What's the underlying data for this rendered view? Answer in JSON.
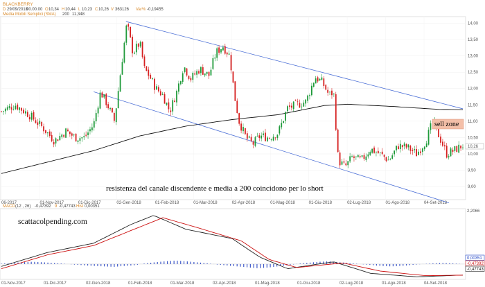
{
  "header": {
    "title": "BLACKBERRY",
    "date_label": "D",
    "date": "29/09/2018",
    "time": "00.00.00",
    "open_label": "O",
    "open": "10,34",
    "high_label": "H",
    "high": "10,44",
    "low_label": "L",
    "low": "10,23",
    "close_label": "C",
    "close": "10,26",
    "volume_label": "V",
    "volume": "363126",
    "var_label": "Var%",
    "var": "-0,19455",
    "ma_label": "Media Mobili Semplici (SMA)",
    "ma_period": "200",
    "ma_value": "11,348"
  },
  "annotations": {
    "channel_text": "resistenza del canale discendente e media a 200 coincidono per lo short",
    "sell_zone": "sell zone",
    "watermark": "scattacolpending.com"
  },
  "macd_header": {
    "label": "MACD",
    "params": "(12 , 26)",
    "macd_value": "-0,47392",
    "signal_label": "9",
    "signal_value": "-0,47743",
    "hist_label": "Hist",
    "hist_value": "0,00351"
  },
  "chart_data": [
    {
      "type": "candlestick",
      "title": "BLACKBERRY",
      "x_tick_labels": [
        "06-2017",
        "01-Nov-2017",
        "01-Dic-2017",
        "02-Gen-2018",
        "01-Feb-2018",
        "01-Mar-2018",
        "02-Apr-2018",
        "01-Mag-2018",
        "01-Giu-2018",
        "02-Lug-2018",
        "01-Ago-2018",
        "04-Set-2018"
      ],
      "y_tick_labels": [
        "14,00",
        "13,50",
        "13,00",
        "12,50",
        "12,00",
        "11,50",
        "11,00",
        "10,50",
        "10,00",
        "9,50",
        "9,00"
      ],
      "y_ticks": [
        14.0,
        13.5,
        13.0,
        12.5,
        12.0,
        11.5,
        11.0,
        10.5,
        10.0,
        9.5,
        9.0
      ],
      "ylim": [
        8.6,
        14.2
      ],
      "last_price": 10.26,
      "last_price_label": "10,26",
      "price_path": [
        [
          0,
          11.3
        ],
        [
          0.03,
          11.5
        ],
        [
          0.06,
          11.2
        ],
        [
          0.09,
          10.8
        ],
        [
          0.115,
          10.4
        ],
        [
          0.14,
          10.7
        ],
        [
          0.16,
          10.5
        ],
        [
          0.18,
          10.5
        ],
        [
          0.2,
          10.9
        ],
        [
          0.215,
          11.9
        ],
        [
          0.23,
          11.5
        ],
        [
          0.245,
          11.0
        ],
        [
          0.26,
          12.7
        ],
        [
          0.272,
          14.0
        ],
        [
          0.285,
          13.1
        ],
        [
          0.3,
          13.4
        ],
        [
          0.31,
          12.6
        ],
        [
          0.32,
          12.4
        ],
        [
          0.335,
          12.0
        ],
        [
          0.35,
          11.8
        ],
        [
          0.365,
          11.3
        ],
        [
          0.38,
          11.9
        ],
        [
          0.395,
          12.7
        ],
        [
          0.41,
          12.3
        ],
        [
          0.43,
          12.6
        ],
        [
          0.45,
          12.4
        ],
        [
          0.465,
          13.1
        ],
        [
          0.48,
          13.3
        ],
        [
          0.495,
          13.0
        ],
        [
          0.505,
          11.8
        ],
        [
          0.515,
          11.0
        ],
        [
          0.53,
          10.5
        ],
        [
          0.545,
          10.3
        ],
        [
          0.56,
          10.55
        ],
        [
          0.58,
          10.5
        ],
        [
          0.6,
          10.65
        ],
        [
          0.62,
          11.4
        ],
        [
          0.64,
          11.5
        ],
        [
          0.66,
          11.6
        ],
        [
          0.68,
          12.35
        ],
        [
          0.695,
          12.2
        ],
        [
          0.71,
          11.8
        ],
        [
          0.72,
          11.9
        ],
        [
          0.73,
          9.8
        ],
        [
          0.745,
          9.6
        ],
        [
          0.76,
          9.9
        ],
        [
          0.78,
          9.8
        ],
        [
          0.8,
          10.15
        ],
        [
          0.82,
          10.0
        ],
        [
          0.84,
          9.8
        ],
        [
          0.86,
          10.25
        ],
        [
          0.88,
          10.2
        ],
        [
          0.9,
          10.0
        ],
        [
          0.92,
          10.4
        ],
        [
          0.935,
          11.0
        ],
        [
          0.95,
          10.5
        ],
        [
          0.965,
          10.0
        ],
        [
          0.98,
          10.1
        ],
        [
          1.0,
          10.26
        ]
      ],
      "sma200_path": [
        [
          0,
          9.4
        ],
        [
          0.1,
          9.75
        ],
        [
          0.2,
          10.1
        ],
        [
          0.3,
          10.55
        ],
        [
          0.4,
          10.85
        ],
        [
          0.5,
          11.05
        ],
        [
          0.6,
          11.2
        ],
        [
          0.7,
          11.48
        ],
        [
          0.75,
          11.52
        ],
        [
          0.85,
          11.45
        ],
        [
          0.95,
          11.36
        ],
        [
          1.0,
          11.35
        ]
      ],
      "channel_upper": [
        [
          0.27,
          14.05
        ],
        [
          1.0,
          11.38
        ]
      ],
      "channel_lower": [
        [
          0.2,
          11.9
        ],
        [
          0.97,
          8.5
        ]
      ]
    },
    {
      "type": "line",
      "title": "MACD",
      "x_tick_labels": [
        "01-Nov-2017",
        "01-Dic-2017",
        "02-Gen-2018",
        "01-Feb-2018",
        "01-Mar-2018",
        "02-Apr-2018",
        "01-Mag-2018",
        "01-Giu-2018",
        "02-Lug-2018",
        "01-Ago-2018",
        "04-Set-2018"
      ],
      "y_top_label": "2,2066",
      "ylim": [
        -0.6,
        2.3
      ],
      "series": [
        {
          "name": "MACD",
          "color": "#222222",
          "values": [
            [
              0,
              -0.1
            ],
            [
              0.1,
              0.5
            ],
            [
              0.2,
              0.9
            ],
            [
              0.28,
              1.7
            ],
            [
              0.33,
              2.1
            ],
            [
              0.4,
              1.5
            ],
            [
              0.5,
              1.1
            ],
            [
              0.56,
              0.3
            ],
            [
              0.62,
              -0.2
            ],
            [
              0.72,
              0.1
            ],
            [
              0.8,
              -0.4
            ],
            [
              0.9,
              -0.55
            ],
            [
              1.0,
              -0.47392
            ]
          ]
        },
        {
          "name": "9",
          "color": "#cc1111",
          "values": [
            [
              0,
              -0.2
            ],
            [
              0.1,
              0.4
            ],
            [
              0.2,
              0.8
            ],
            [
              0.3,
              1.6
            ],
            [
              0.35,
              2.0
            ],
            [
              0.42,
              1.6
            ],
            [
              0.52,
              1.0
            ],
            [
              0.58,
              0.2
            ],
            [
              0.64,
              -0.15
            ],
            [
              0.74,
              0.05
            ],
            [
              0.82,
              -0.3
            ],
            [
              0.92,
              -0.5
            ],
            [
              1.0,
              -0.47743
            ]
          ]
        }
      ],
      "histogram": [
        0.02,
        0.05,
        0.08,
        0.1,
        0.08,
        0.05,
        0.02,
        -0.02,
        -0.05,
        -0.08,
        -0.1,
        -0.12,
        -0.08,
        -0.05,
        0.03,
        0.08,
        0.12,
        0.15,
        0.12,
        0.08,
        0.04,
        -0.02,
        -0.06,
        -0.1,
        -0.14,
        -0.18,
        -0.15,
        -0.1,
        -0.05,
        0.02,
        0.06,
        0.1,
        0.12,
        0.08,
        0.04,
        0.0,
        -0.04,
        -0.08,
        -0.1,
        -0.08,
        -0.04,
        0.0,
        0.03,
        0.05,
        0.03,
        0.0
      ],
      "value_labels": [
        {
          "text": "0,00351",
          "color": "#1a3fc4"
        },
        {
          "text": "-0,47392",
          "color": "#d11a1a"
        },
        {
          "text": "-0,47743",
          "color": "#222222"
        }
      ]
    }
  ]
}
